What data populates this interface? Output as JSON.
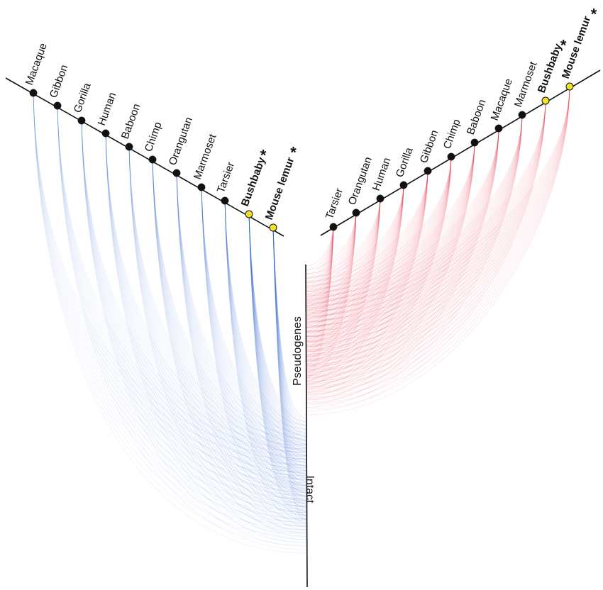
{
  "colors": {
    "intact_accent": "#2f63cf",
    "pseudogene_accent": "#e6374f",
    "node_default": "#111111",
    "node_highlight": "#f2e22a",
    "axis": "#111111"
  },
  "left_panel": {
    "species": [
      {
        "name": "Macaque",
        "highlight": false,
        "starred": false,
        "weight": 0.35
      },
      {
        "name": "Gibbon",
        "highlight": false,
        "starred": false,
        "weight": 0.35
      },
      {
        "name": "Gorilla",
        "highlight": false,
        "starred": false,
        "weight": 0.45
      },
      {
        "name": "Human",
        "highlight": false,
        "starred": false,
        "weight": 0.45
      },
      {
        "name": "Baboon",
        "highlight": false,
        "starred": false,
        "weight": 0.45
      },
      {
        "name": "Chimp",
        "highlight": false,
        "starred": false,
        "weight": 0.55
      },
      {
        "name": "Orangutan",
        "highlight": false,
        "starred": false,
        "weight": 0.55
      },
      {
        "name": "Marmoset",
        "highlight": false,
        "starred": false,
        "weight": 0.6
      },
      {
        "name": "Tarsier",
        "highlight": false,
        "starred": false,
        "weight": 0.7
      },
      {
        "name": "Bushbaby",
        "highlight": true,
        "starred": true,
        "weight": 1.0
      },
      {
        "name": "Mouse lemur",
        "highlight": true,
        "starred": true,
        "weight": 1.0
      }
    ]
  },
  "right_panel": {
    "species": [
      {
        "name": "Tarsier",
        "highlight": false,
        "starred": false,
        "weight": 1.0
      },
      {
        "name": "Orangutan",
        "highlight": false,
        "starred": false,
        "weight": 0.9
      },
      {
        "name": "Human",
        "highlight": false,
        "starred": false,
        "weight": 0.85
      },
      {
        "name": "Gorilla",
        "highlight": false,
        "starred": false,
        "weight": 0.85
      },
      {
        "name": "Gibbon",
        "highlight": false,
        "starred": false,
        "weight": 0.85
      },
      {
        "name": "Chimp",
        "highlight": false,
        "starred": false,
        "weight": 0.85
      },
      {
        "name": "Baboon",
        "highlight": false,
        "starred": false,
        "weight": 0.8
      },
      {
        "name": "Macaque",
        "highlight": false,
        "starred": false,
        "weight": 0.8
      },
      {
        "name": "Marmoset",
        "highlight": false,
        "starred": false,
        "weight": 0.75
      },
      {
        "name": "Bushbaby",
        "highlight": true,
        "starred": true,
        "weight": 0.7
      },
      {
        "name": "Mouse lemur",
        "highlight": true,
        "starred": true,
        "weight": 0.7
      }
    ]
  },
  "central_axis": {
    "upper_label": "Pseudogenes",
    "lower_label": "Intact"
  },
  "star_symbol": "*"
}
